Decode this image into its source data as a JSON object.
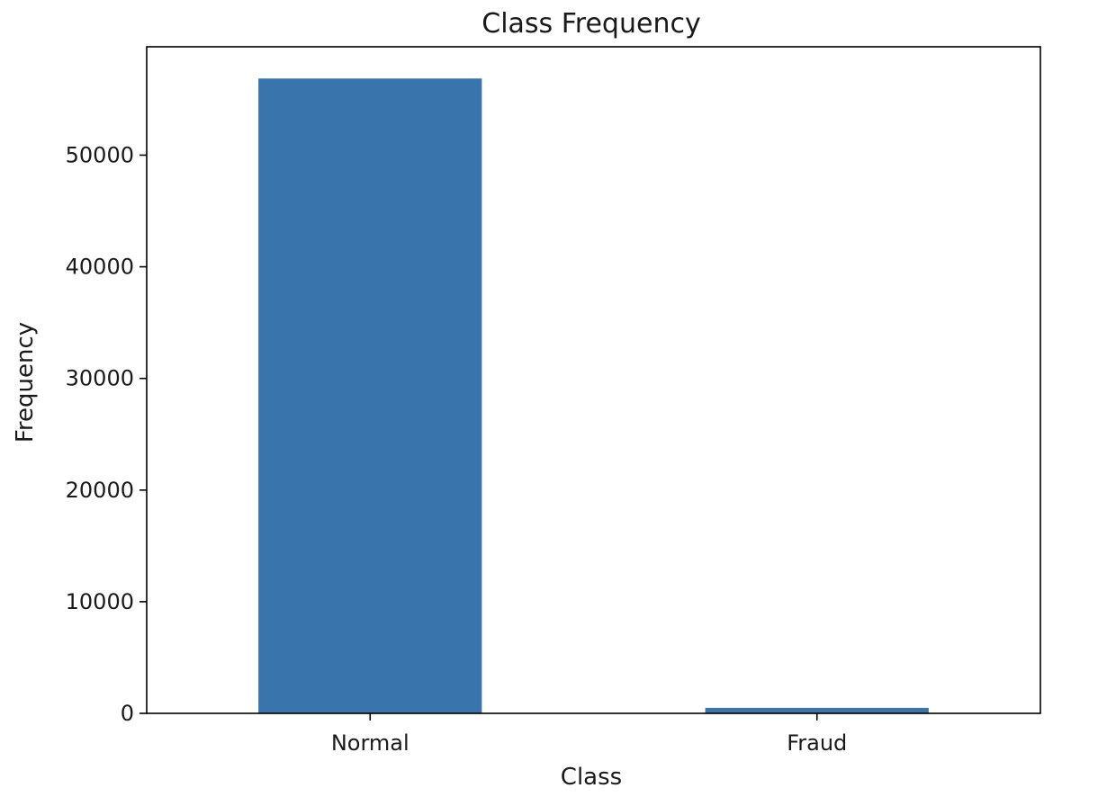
{
  "chart_data": {
    "type": "bar",
    "title": "Class Frequency",
    "xlabel": "Class",
    "ylabel": "Frequency",
    "categories": [
      "Normal",
      "Fraud"
    ],
    "values": [
      56864,
      492
    ],
    "ylim": [
      0,
      59707
    ],
    "yticks": [
      0,
      10000,
      20000,
      30000,
      40000,
      50000
    ],
    "ytick_labels": [
      "0",
      "10000",
      "20000",
      "30000",
      "40000",
      "50000"
    ],
    "bar_color": "#3a74ad",
    "grid": false,
    "legend": "none"
  }
}
